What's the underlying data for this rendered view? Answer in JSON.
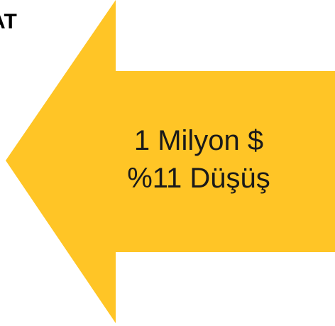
{
  "fragment": "AT",
  "arrow": {
    "lines": [
      "1 Milyon $",
      "%11 Düşüş"
    ]
  }
}
